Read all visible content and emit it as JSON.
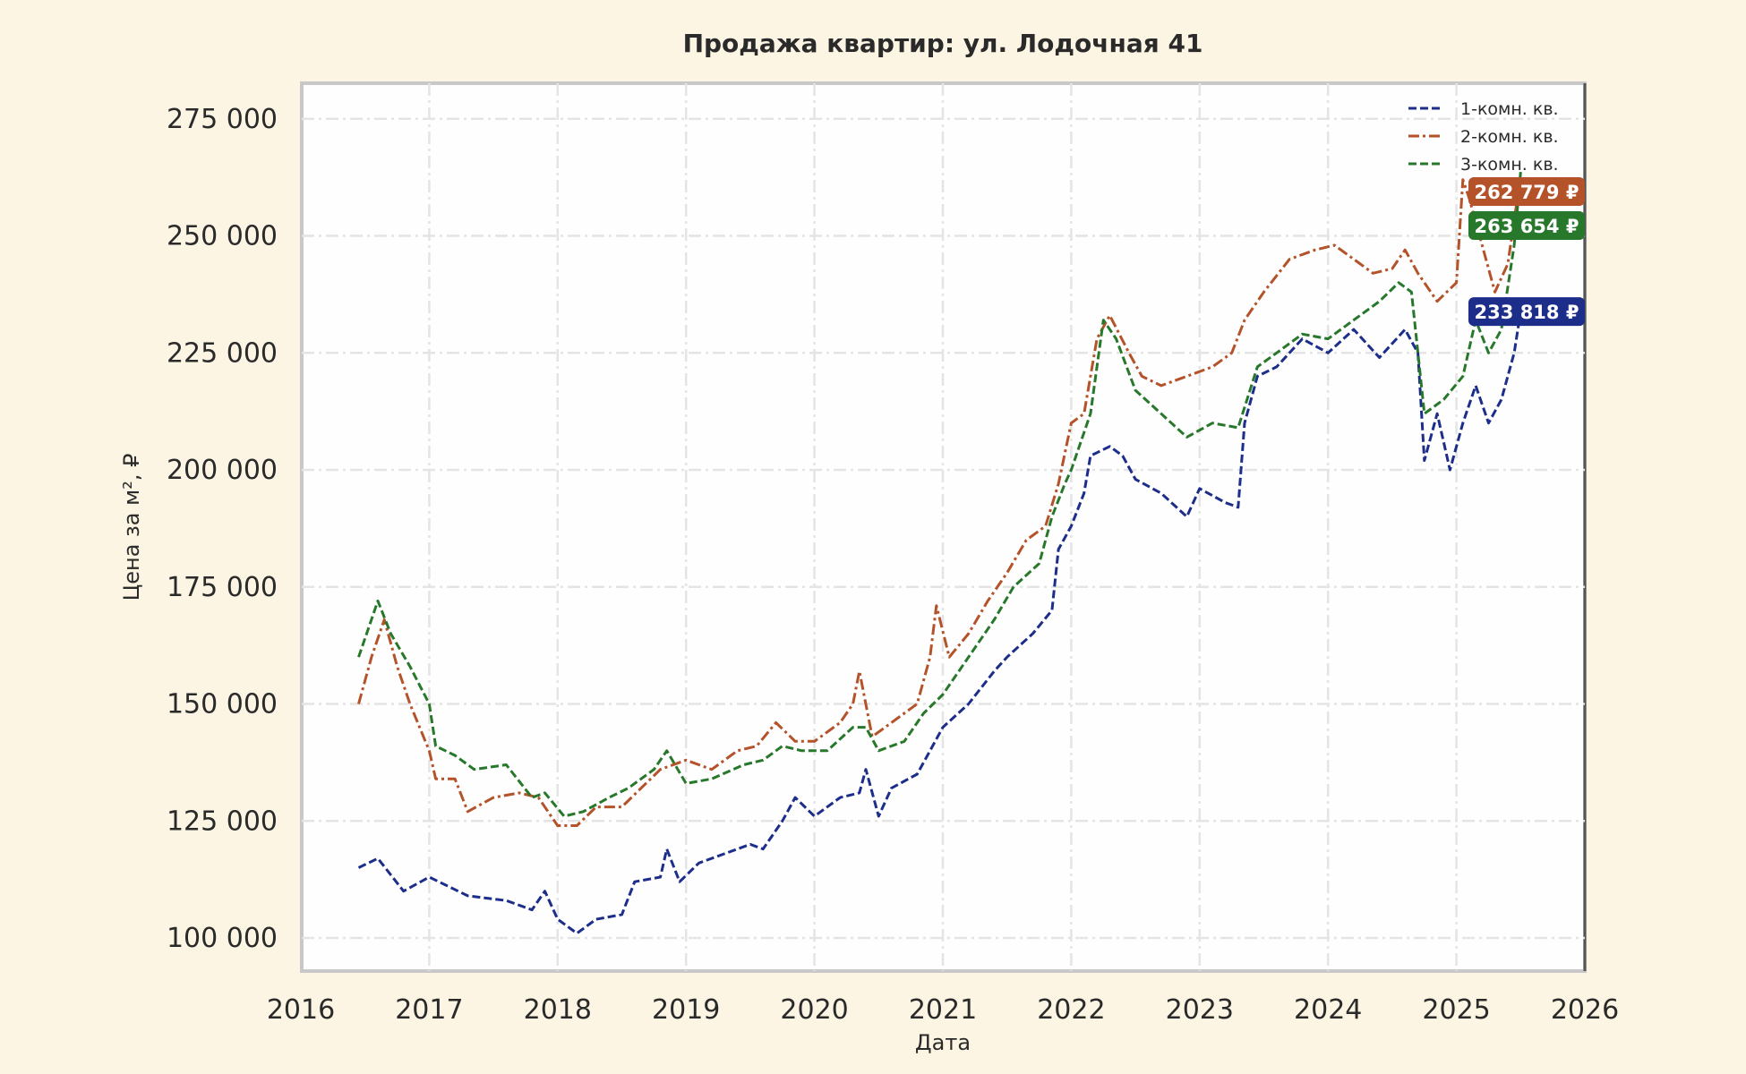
{
  "chart_data": {
    "type": "line",
    "title": "Продажа квартир: ул. Лодочная 41",
    "xlabel": "Дата",
    "ylabel": "Цена за м², ₽",
    "xlim": [
      2016,
      2026
    ],
    "ylim": [
      93000,
      282000
    ],
    "x_ticks": [
      "2016",
      "2017",
      "2018",
      "2019",
      "2020",
      "2021",
      "2022",
      "2023",
      "2024",
      "2025",
      "2026"
    ],
    "y_ticks": [
      100000,
      125000,
      150000,
      175000,
      200000,
      225000,
      250000,
      275000
    ],
    "y_tick_labels": [
      "100 000",
      "125 000",
      "150 000",
      "175 000",
      "200 000",
      "225 000",
      "250 000",
      "275 000"
    ],
    "grid": true,
    "legend_position": "top-right",
    "series": [
      {
        "name": "1-комн. кв.",
        "color": "#1c2d8a",
        "dash": "dashed",
        "end_label": "233 818 ₽",
        "x": [
          2016.45,
          2016.6,
          2016.8,
          2017.0,
          2017.3,
          2017.6,
          2017.8,
          2017.9,
          2018.0,
          2018.15,
          2018.3,
          2018.5,
          2018.6,
          2018.8,
          2018.85,
          2018.95,
          2019.1,
          2019.3,
          2019.5,
          2019.6,
          2019.75,
          2019.85,
          2020.0,
          2020.2,
          2020.35,
          2020.4,
          2020.5,
          2020.6,
          2020.8,
          2020.9,
          2021.0,
          2021.2,
          2021.4,
          2021.5,
          2021.7,
          2021.85,
          2021.9,
          2022.0,
          2022.1,
          2022.15,
          2022.3,
          2022.4,
          2022.5,
          2022.7,
          2022.9,
          2023.0,
          2023.2,
          2023.3,
          2023.35,
          2023.45,
          2023.6,
          2023.8,
          2024.0,
          2024.2,
          2024.4,
          2024.6,
          2024.7,
          2024.75,
          2024.85,
          2024.95,
          2025.05,
          2025.15,
          2025.25,
          2025.35,
          2025.45,
          2025.5
        ],
        "y": [
          115000,
          117000,
          110000,
          113000,
          109000,
          108000,
          106000,
          110000,
          104000,
          101000,
          104000,
          105000,
          112000,
          113000,
          119000,
          112000,
          116000,
          118000,
          120000,
          119000,
          125000,
          130000,
          126000,
          130000,
          131000,
          136000,
          126000,
          132000,
          135000,
          140000,
          145000,
          150000,
          157000,
          160000,
          165000,
          170000,
          183000,
          188000,
          195000,
          203000,
          205000,
          203000,
          198000,
          195000,
          190000,
          196000,
          193000,
          192000,
          210000,
          220000,
          222000,
          228000,
          225000,
          230000,
          224000,
          230000,
          225000,
          202000,
          212000,
          200000,
          210000,
          218000,
          210000,
          215000,
          225000,
          233818
        ]
      },
      {
        "name": "2-комн. кв.",
        "color": "#b4522a",
        "dash": "dashdot",
        "end_label": "262 779 ₽",
        "x": [
          2016.45,
          2016.55,
          2016.65,
          2016.75,
          2016.85,
          2017.0,
          2017.05,
          2017.2,
          2017.3,
          2017.5,
          2017.7,
          2017.85,
          2018.0,
          2018.15,
          2018.3,
          2018.5,
          2018.65,
          2018.8,
          2019.0,
          2019.2,
          2019.4,
          2019.55,
          2019.7,
          2019.85,
          2020.0,
          2020.2,
          2020.3,
          2020.35,
          2020.45,
          2020.6,
          2020.8,
          2020.9,
          2020.95,
          2021.05,
          2021.2,
          2021.35,
          2021.5,
          2021.65,
          2021.8,
          2021.9,
          2022.0,
          2022.1,
          2022.2,
          2022.3,
          2022.45,
          2022.55,
          2022.7,
          2022.9,
          2023.1,
          2023.25,
          2023.35,
          2023.5,
          2023.7,
          2023.9,
          2024.05,
          2024.2,
          2024.35,
          2024.5,
          2024.6,
          2024.7,
          2024.85,
          2025.0,
          2025.05,
          2025.1,
          2025.2,
          2025.3,
          2025.4,
          2025.5
        ],
        "y": [
          150000,
          160000,
          168000,
          158000,
          150000,
          140000,
          134000,
          134000,
          127000,
          130000,
          131000,
          130000,
          124000,
          124000,
          128000,
          128000,
          132000,
          136000,
          138000,
          136000,
          140000,
          141000,
          146000,
          142000,
          142000,
          146000,
          150000,
          157000,
          143000,
          146000,
          150000,
          160000,
          171000,
          160000,
          165000,
          172000,
          178000,
          185000,
          188000,
          197000,
          210000,
          212000,
          228000,
          233000,
          225000,
          220000,
          218000,
          220000,
          222000,
          225000,
          232000,
          238000,
          245000,
          247000,
          248000,
          245000,
          242000,
          243000,
          247000,
          242000,
          236000,
          240000,
          262000,
          258000,
          248000,
          238000,
          244000,
          262779
        ]
      },
      {
        "name": "3-комн. кв.",
        "color": "#27782a",
        "dash": "dashed",
        "end_label": "263 654 ₽",
        "x": [
          2016.45,
          2016.6,
          2016.7,
          2016.85,
          2017.0,
          2017.05,
          2017.2,
          2017.35,
          2017.6,
          2017.8,
          2017.9,
          2018.05,
          2018.2,
          2018.4,
          2018.55,
          2018.75,
          2018.85,
          2019.0,
          2019.2,
          2019.45,
          2019.6,
          2019.75,
          2019.9,
          2020.1,
          2020.3,
          2020.4,
          2020.5,
          2020.7,
          2020.85,
          2021.0,
          2021.2,
          2021.4,
          2021.55,
          2021.75,
          2021.85,
          2021.95,
          2022.0,
          2022.15,
          2022.25,
          2022.35,
          2022.5,
          2022.7,
          2022.9,
          2023.1,
          2023.3,
          2023.45,
          2023.6,
          2023.8,
          2024.0,
          2024.2,
          2024.4,
          2024.55,
          2024.65,
          2024.75,
          2024.9,
          2025.05,
          2025.15,
          2025.25,
          2025.35,
          2025.45,
          2025.5
        ],
        "y": [
          160000,
          172000,
          165000,
          158000,
          150000,
          141000,
          139000,
          136000,
          137000,
          130000,
          131000,
          126000,
          127000,
          130000,
          132000,
          136000,
          140000,
          133000,
          134000,
          137000,
          138000,
          141000,
          140000,
          140000,
          145000,
          145000,
          140000,
          142000,
          148000,
          152000,
          160000,
          168000,
          175000,
          180000,
          190000,
          197000,
          200000,
          212000,
          232000,
          228000,
          217000,
          212000,
          207000,
          210000,
          209000,
          222000,
          225000,
          229000,
          228000,
          232000,
          236000,
          240000,
          238000,
          212000,
          215000,
          220000,
          232000,
          225000,
          230000,
          248000,
          263654
        ]
      }
    ]
  }
}
